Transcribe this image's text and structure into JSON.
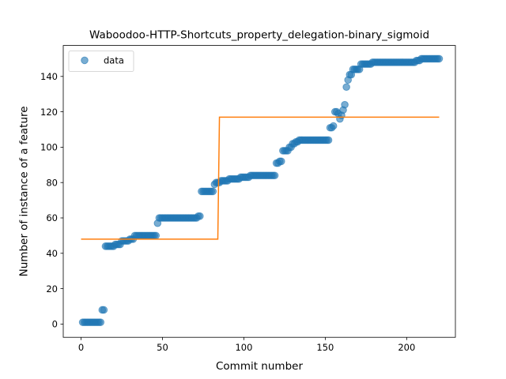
{
  "chart_data": {
    "type": "scatter",
    "title": "Waboodoo-HTTP-Shortcuts_property_delegation-binary_sigmoid",
    "xlabel": "Commit number",
    "ylabel": "Number of instance of a feature",
    "xlim": [
      -10.95,
      229.95
    ],
    "ylim": [
      -7.5,
      157.5
    ],
    "xticks": [
      0,
      50,
      100,
      150,
      200
    ],
    "yticks": [
      0,
      20,
      40,
      60,
      80,
      100,
      120,
      140
    ],
    "grid": false,
    "legend_position": "top-left",
    "colors": {
      "data": "#1f77b4",
      "fit": "#ff7f0e"
    },
    "legend": [
      {
        "label": "data",
        "marker": "circle",
        "color": "#1f77b4"
      }
    ],
    "series": [
      {
        "name": "data",
        "kind": "scatter",
        "runs": [
          [
            1,
            1,
            1
          ],
          [
            2,
            12,
            1
          ],
          [
            13,
            14,
            8
          ],
          [
            15,
            20,
            44
          ],
          [
            21,
            24,
            45
          ],
          [
            25,
            29,
            47
          ],
          [
            30,
            32,
            48
          ],
          [
            33,
            46,
            50
          ],
          [
            47,
            47,
            57
          ],
          [
            48,
            71,
            60
          ],
          [
            72,
            73,
            61
          ],
          [
            74,
            81,
            75
          ],
          [
            82,
            82,
            79
          ],
          [
            83,
            85,
            80
          ],
          [
            86,
            90,
            81
          ],
          [
            91,
            97,
            82
          ],
          [
            98,
            103,
            83
          ],
          [
            104,
            119,
            84
          ],
          [
            120,
            121,
            91
          ],
          [
            122,
            123,
            92
          ],
          [
            124,
            127,
            98
          ],
          [
            128,
            129,
            100
          ],
          [
            130,
            131,
            102
          ],
          [
            132,
            133,
            103
          ],
          [
            134,
            152,
            104
          ],
          [
            153,
            154,
            111
          ],
          [
            155,
            155,
            112
          ],
          [
            156,
            157,
            120
          ],
          [
            158,
            158,
            119
          ],
          [
            159,
            159,
            116
          ],
          [
            160,
            160,
            118
          ],
          [
            161,
            161,
            121
          ],
          [
            162,
            162,
            124
          ],
          [
            163,
            163,
            134
          ],
          [
            164,
            164,
            138
          ],
          [
            165,
            166,
            141
          ],
          [
            167,
            171,
            144
          ],
          [
            172,
            178,
            147
          ],
          [
            179,
            205,
            148
          ],
          [
            206,
            208,
            149
          ],
          [
            209,
            220,
            150
          ]
        ]
      },
      {
        "name": "sigmoid fit",
        "kind": "step-line",
        "points": [
          [
            0,
            48
          ],
          [
            84,
            48
          ],
          [
            85,
            117
          ],
          [
            220,
            117
          ]
        ]
      }
    ]
  }
}
